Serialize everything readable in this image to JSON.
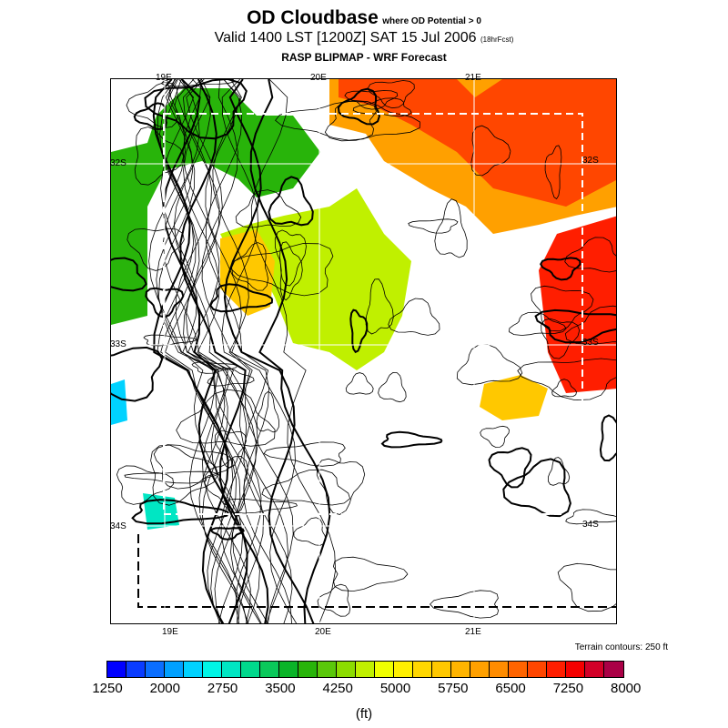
{
  "header": {
    "title": "OD Cloudbase",
    "title_note": "where OD Potential > 0",
    "valid": "Valid 1400 LST [1200Z] SAT 15 Jul 2006",
    "forecast_note": "(18hrFcst)",
    "subtitle": "RASP BLIPMAP - WRF Forecast"
  },
  "map": {
    "lon_labels": [
      "19E",
      "20E",
      "21E"
    ],
    "lat_labels": [
      "32S",
      "33S",
      "34S"
    ],
    "terrain_note": "Terrain contours: 250 ft"
  },
  "colorbar": {
    "unit": "(ft)",
    "tick_labels": [
      "1250",
      "2000",
      "2750",
      "3500",
      "4250",
      "5000",
      "5750",
      "6500",
      "7250",
      "8000"
    ],
    "colors": [
      "#0000ff",
      "#0a3cff",
      "#0a6eff",
      "#00a0ff",
      "#00d2ff",
      "#00f5e6",
      "#00e6c3",
      "#00d88c",
      "#0ac85a",
      "#0ab428",
      "#28b40a",
      "#5ac80a",
      "#8cdc00",
      "#c0f000",
      "#f0ff00",
      "#fff000",
      "#ffd700",
      "#ffc800",
      "#ffb400",
      "#ffa000",
      "#ff8c00",
      "#ff6400",
      "#ff4600",
      "#ff1e00",
      "#f50000",
      "#d20028",
      "#aa0046"
    ]
  }
}
